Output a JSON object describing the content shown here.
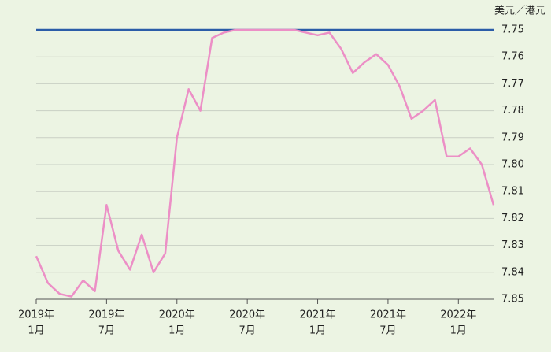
{
  "chart_data": {
    "type": "line",
    "y_label": "美元／港元",
    "x": [
      "2019-01",
      "2019-02",
      "2019-03",
      "2019-04",
      "2019-05",
      "2019-06",
      "2019-07",
      "2019-08",
      "2019-09",
      "2019-10",
      "2019-11",
      "2019-12",
      "2020-01",
      "2020-02",
      "2020-03",
      "2020-04",
      "2020-05",
      "2020-06",
      "2020-07",
      "2020-08",
      "2020-09",
      "2020-10",
      "2020-11",
      "2020-12",
      "2021-01",
      "2021-02",
      "2021-03",
      "2021-04",
      "2021-05",
      "2021-06",
      "2021-07",
      "2021-08",
      "2021-09",
      "2021-10",
      "2021-11",
      "2021-12",
      "2022-01",
      "2022-02",
      "2022-03",
      "2022-04"
    ],
    "series": [
      {
        "color": "#ec8fc6",
        "values": [
          7.834,
          7.844,
          7.848,
          7.849,
          7.843,
          7.847,
          7.815,
          7.832,
          7.839,
          7.826,
          7.84,
          7.833,
          7.79,
          7.772,
          7.78,
          7.753,
          7.751,
          7.75,
          7.75,
          7.75,
          7.75,
          7.75,
          7.75,
          7.751,
          7.752,
          7.751,
          7.757,
          7.766,
          7.762,
          7.759,
          7.763,
          7.771,
          7.783,
          7.78,
          7.776,
          7.797,
          7.797,
          7.794,
          7.8,
          7.815
        ]
      }
    ],
    "ref_line": {
      "value": 7.75,
      "color": "#2b5ca8"
    },
    "xlim": [
      "2019-01",
      "2022-04"
    ],
    "xticks": [
      {
        "value": "2019-01",
        "label": [
          "2019年",
          "1月"
        ]
      },
      {
        "value": "2019-07",
        "label": [
          "2019年",
          "7月"
        ]
      },
      {
        "value": "2020-01",
        "label": [
          "2020年",
          "1月"
        ]
      },
      {
        "value": "2020-07",
        "label": [
          "2020年",
          "7月"
        ]
      },
      {
        "value": "2021-01",
        "label": [
          "2021年",
          "1月"
        ]
      },
      {
        "value": "2021-07",
        "label": [
          "2021年",
          "7月"
        ]
      },
      {
        "value": "2022-01",
        "label": [
          "2022年",
          "1月"
        ]
      }
    ],
    "ylim": [
      7.75,
      7.85
    ],
    "inverted": true,
    "yticks": [
      7.75,
      7.76,
      7.77,
      7.78,
      7.79,
      {
        "value": 7.8,
        "label": "7.80"
      },
      7.81,
      7.82,
      7.83,
      7.84,
      7.85
    ],
    "grid": true
  }
}
